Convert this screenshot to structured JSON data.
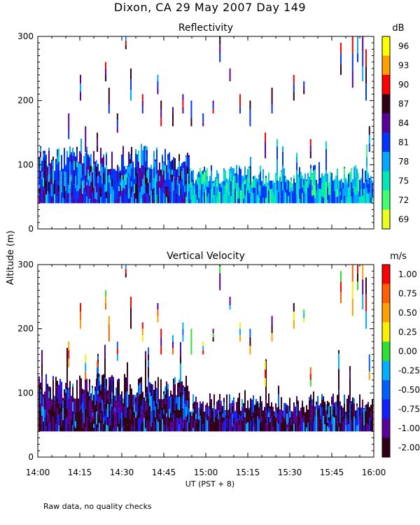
{
  "header": {
    "title": "Dixon, CA 29 May 2007  Day 149"
  },
  "axes": {
    "ylabel": "Altitude (m)",
    "xlabel": "UT  (PST + 8)",
    "xticks": [
      "14:00",
      "14:15",
      "14:30",
      "14:45",
      "15:00",
      "15:15",
      "15:30",
      "15:45",
      "16:00"
    ],
    "yticks": [
      "0",
      "100",
      "200",
      "300"
    ]
  },
  "footnote": "Raw data, no quality checks",
  "chart_data": [
    {
      "type": "heatmap",
      "title": "Reflectivity",
      "xlabel": "UT  (PST + 8)",
      "ylabel": "Altitude (m)",
      "xlim": [
        14.0,
        16.0
      ],
      "ylim": [
        0,
        300
      ],
      "colorbar": {
        "unit": "dB",
        "labels": [
          "96",
          "93",
          "90",
          "87",
          "84",
          "81",
          "78",
          "75",
          "72",
          "69"
        ],
        "colors": [
          "#ffff00",
          "#ffa000",
          "#ff0000",
          "#300018",
          "#5a009a",
          "#0034ff",
          "#00a8ff",
          "#00e8b8",
          "#40ff70",
          "#e8ff20"
        ]
      },
      "description_layers": {
        "low_layer_altitude_m": [
          40,
          100
        ],
        "plumes_altitude_m": [
          100,
          300
        ]
      }
    },
    {
      "type": "heatmap",
      "title": "Vertical Velocity",
      "xlabel": "UT  (PST + 8)",
      "ylabel": "Altitude (m)",
      "xlim": [
        14.0,
        16.0
      ],
      "ylim": [
        0,
        300
      ],
      "colorbar": {
        "unit": "m/s",
        "labels": [
          "1.00",
          "0.75",
          "0.50",
          "0.25",
          "0.00",
          "-0.25",
          "-0.50",
          "-0.75",
          "-1.00",
          "-2.00"
        ],
        "colors": [
          "#ff0000",
          "#ff6000",
          "#ffa000",
          "#f8f000",
          "#30e030",
          "#00b0ff",
          "#0060ff",
          "#1020ff",
          "#5a009a",
          "#300018"
        ]
      },
      "description_layers": {
        "low_layer_altitude_m": [
          40,
          100
        ],
        "plumes_altitude_m": [
          100,
          300
        ]
      }
    }
  ]
}
